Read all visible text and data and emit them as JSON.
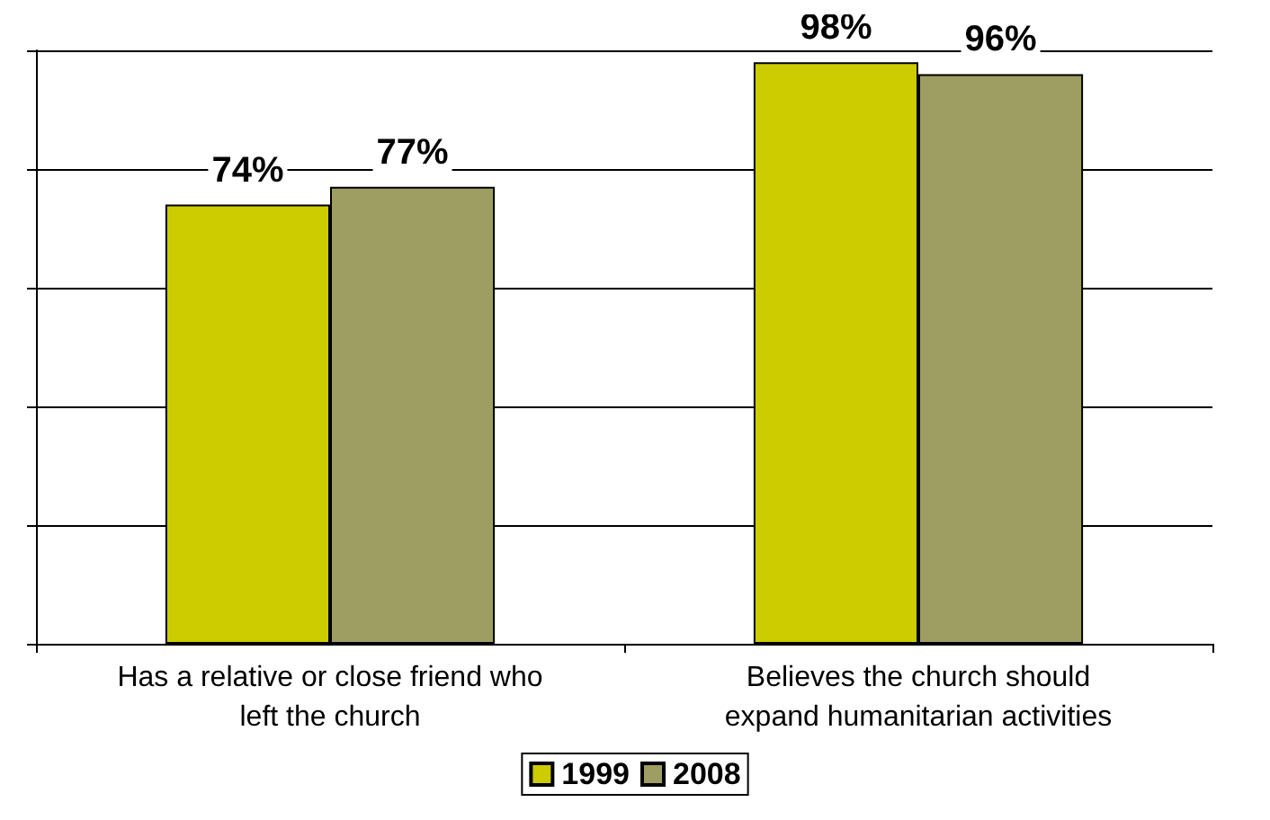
{
  "chart_data": {
    "type": "bar",
    "categories": [
      "Has a relative or close friend who\nleft the church",
      "Believes the church should\nexpand humanitarian activities"
    ],
    "series": [
      {
        "name": "1999",
        "color": "#cccc00",
        "values": [
          74,
          98
        ],
        "value_labels": [
          "74%",
          "98%"
        ]
      },
      {
        "name": "2008",
        "color": "#9e9e62",
        "values": [
          77,
          96
        ],
        "value_labels": [
          "77%",
          "96%"
        ]
      }
    ],
    "grid": "y",
    "legend": "bottom",
    "tick_labels": "x"
  }
}
